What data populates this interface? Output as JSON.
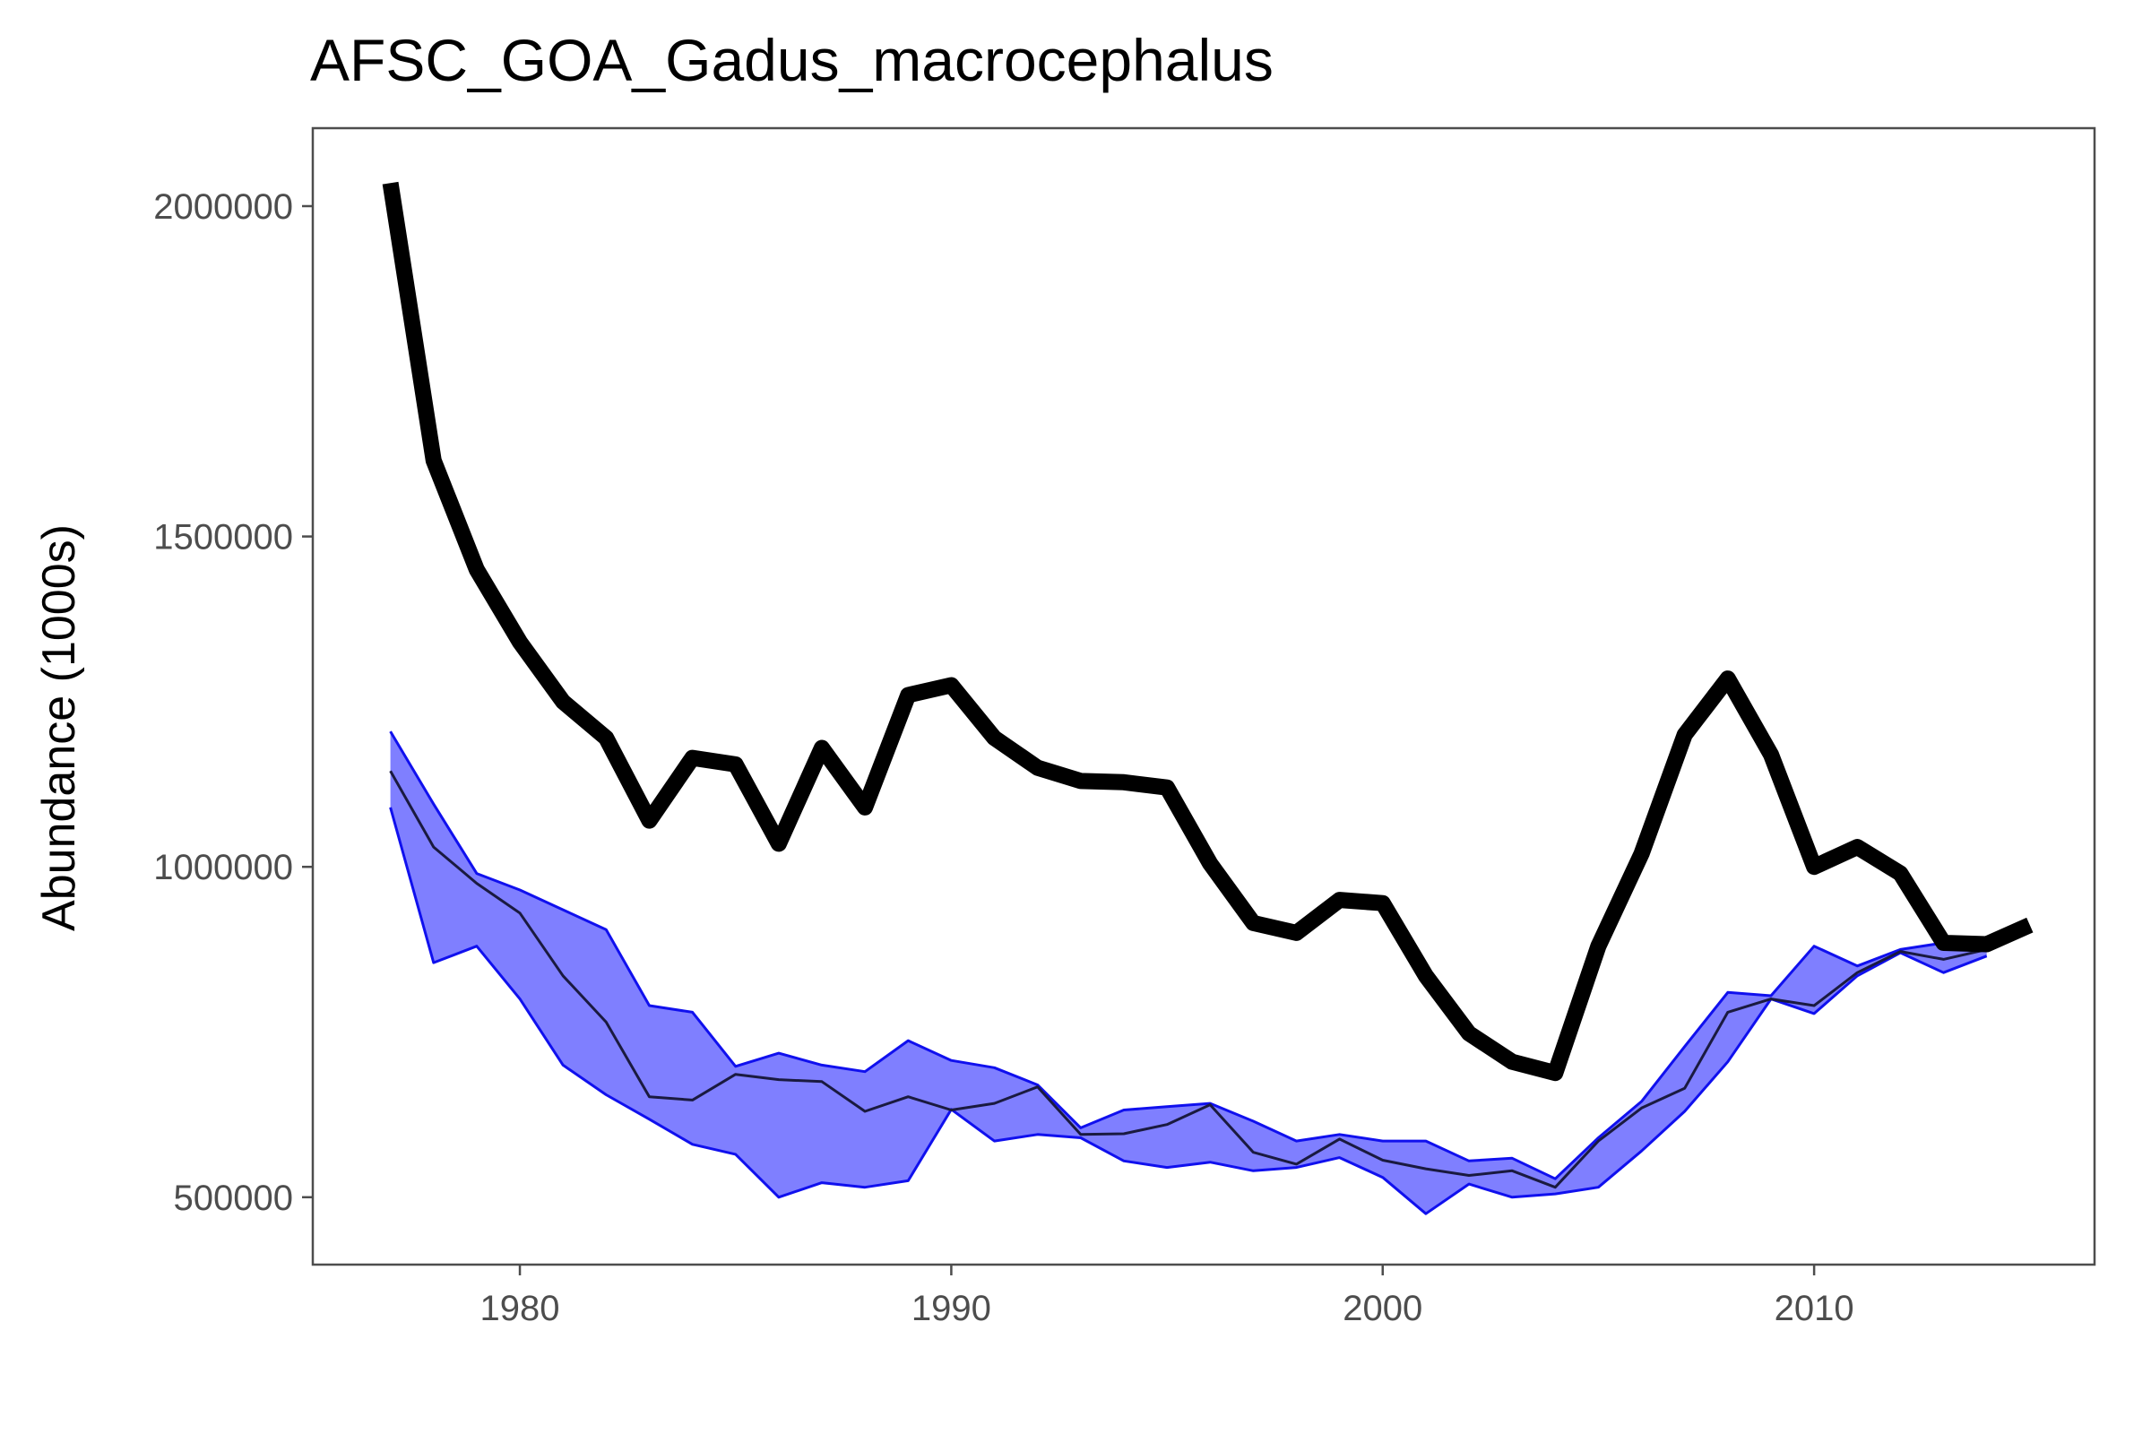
{
  "chart_data": {
    "type": "line",
    "title": "AFSC_GOA_Gadus_macrocephalus",
    "xlabel": "",
    "ylabel": "Abundance (1000s)",
    "xlim": [
      1975.2,
      2016.5
    ],
    "ylim": [
      398000,
      2118000
    ],
    "x_ticks": [
      1980,
      1990,
      2000,
      2010
    ],
    "y_ticks": [
      500000,
      1000000,
      1500000,
      2000000
    ],
    "grid": false,
    "colors": {
      "main_line": "#000000",
      "band_fill": "#7f7fff",
      "band_edge": "#1010ee",
      "median_line": "#1a1a40",
      "axis": "#4d4d4d"
    },
    "series": [
      {
        "x": [
          1977,
          1978,
          1979,
          1980,
          1981,
          1982,
          1983,
          1984,
          1985,
          1986,
          1987,
          1988,
          1989,
          1990,
          1991,
          1992,
          1993,
          1994,
          1995,
          1996,
          1997,
          1998,
          1999,
          2000,
          2001,
          2002,
          2003,
          2004,
          2005,
          2006,
          2007,
          2008,
          2009,
          2010,
          2011,
          2012,
          2013,
          2014,
          2015
        ],
        "values": [
          2035000,
          1615000,
          1450000,
          1340000,
          1250000,
          1195000,
          1070000,
          1165000,
          1155000,
          1035000,
          1180000,
          1090000,
          1260000,
          1275000,
          1195000,
          1150000,
          1130000,
          1128000,
          1120000,
          1005000,
          915000,
          900000,
          950000,
          945000,
          835000,
          748000,
          705000,
          688000,
          880000,
          1020000,
          1200000,
          1285000,
          1170000,
          1000000,
          1030000,
          990000,
          885000,
          883000,
          912000
        ]
      },
      {
        "role": "band",
        "x": [
          1977,
          1978,
          1979,
          1980,
          1981,
          1982,
          1983,
          1984,
          1985,
          1986,
          1987,
          1988,
          1989,
          1990,
          1991,
          1992,
          1993,
          1994,
          1995,
          1996,
          1997,
          1998,
          1999,
          2000,
          2001,
          2002,
          2003,
          2004,
          2005,
          2006,
          2007,
          2008,
          2009,
          2010,
          2011,
          2012,
          2013,
          2014
        ],
        "lower": [
          1090000,
          855000,
          880000,
          800000,
          700000,
          655000,
          618000,
          580000,
          565000,
          500000,
          522000,
          515000,
          525000,
          633000,
          585000,
          595000,
          590000,
          555000,
          545000,
          553000,
          540000,
          545000,
          560000,
          530000,
          475000,
          520000,
          500000,
          505000,
          515000,
          570000,
          630000,
          705000,
          800000,
          778000,
          835000,
          870000,
          840000,
          865000
        ],
        "median": [
          1145000,
          1030000,
          975000,
          930000,
          835000,
          765000,
          652000,
          647000,
          686000,
          678000,
          675000,
          630000,
          652000,
          632000,
          642000,
          667000,
          595000,
          596000,
          610000,
          640000,
          568000,
          550000,
          588000,
          556000,
          543000,
          533000,
          540000,
          515000,
          585000,
          635000,
          665000,
          780000,
          800000,
          790000,
          840000,
          872000,
          860000,
          875000
        ],
        "upper": [
          1205000,
          1095000,
          990000,
          965000,
          935000,
          905000,
          790000,
          780000,
          698000,
          718000,
          700000,
          690000,
          737000,
          707000,
          696000,
          670000,
          605000,
          632000,
          637000,
          642000,
          615000,
          585000,
          595000,
          585000,
          585000,
          555000,
          559000,
          528000,
          590000,
          645000,
          728000,
          810000,
          805000,
          880000,
          850000,
          875000,
          885000,
          875000
        ]
      }
    ]
  }
}
